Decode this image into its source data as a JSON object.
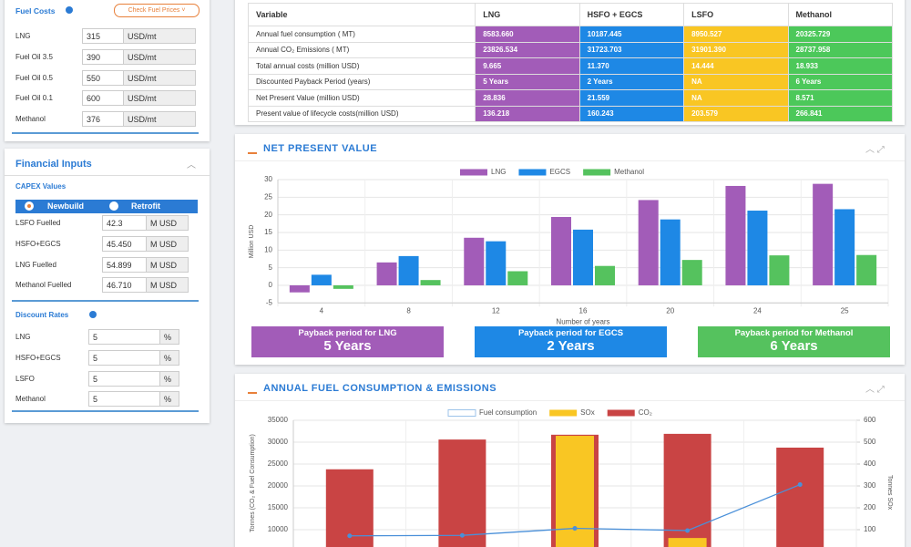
{
  "fuel_costs": {
    "title": "Fuel Costs",
    "button": "Check Fuel Prices",
    "rows": [
      {
        "label": "LNG",
        "value": "315",
        "unit": "USD/mt"
      },
      {
        "label": "Fuel Oil 3.5",
        "value": "390",
        "unit": "USD/mt"
      },
      {
        "label": "Fuel Oil 0.5",
        "value": "550",
        "unit": "USD/mt"
      },
      {
        "label": "Fuel Oil 0.1",
        "value": "600",
        "unit": "USD/mt"
      },
      {
        "label": "Methanol",
        "value": "376",
        "unit": "USD/mt"
      }
    ]
  },
  "financial_inputs": {
    "title": "Financial Inputs",
    "capex": {
      "title": "CAPEX Values",
      "options": [
        "Newbuild",
        "Retrofit"
      ],
      "rows": [
        {
          "label": "LSFO Fuelled",
          "value": "42.3",
          "unit": "M USD"
        },
        {
          "label": "HSFO+EGCS",
          "value": "45.450",
          "unit": "M USD"
        },
        {
          "label": "LNG Fuelled",
          "value": "54.899",
          "unit": "M USD"
        },
        {
          "label": "Methanol Fuelled",
          "value": "46.710",
          "unit": "M USD"
        }
      ]
    },
    "discount": {
      "title": "Discount Rates",
      "rows": [
        {
          "label": "LNG",
          "value": "5",
          "unit": "%"
        },
        {
          "label": "HSFO+EGCS",
          "value": "5",
          "unit": "%"
        },
        {
          "label": "LSFO",
          "value": "5",
          "unit": "%"
        },
        {
          "label": "Methanol",
          "value": "5",
          "unit": "%"
        }
      ]
    }
  },
  "table": {
    "headers": [
      "Variable",
      "LNG",
      "HSFO + EGCS",
      "LSFO",
      "Methanol"
    ],
    "column_colors": [
      "#a25cb8",
      "#1e88e5",
      "#f9c623",
      "#4cc85a"
    ],
    "rows": [
      [
        "Annual fuel consumption ( MT)",
        "8583.660",
        "10187.445",
        "8950.527",
        "20325.729"
      ],
      [
        "Annual CO₂ Emissions ( MT)",
        "23826.534",
        "31723.703",
        "31901.390",
        "28737.958"
      ],
      [
        "Total annual costs (million USD)",
        "9.665",
        "11.370",
        "14.444",
        "18.933"
      ],
      [
        "Discounted Payback Period (years)",
        "5 Years",
        "2 Years",
        "NA",
        "6 Years"
      ],
      [
        "Net Present Value (million USD)",
        "28.836",
        "21.559",
        "NA",
        "8.571"
      ],
      [
        "Present value of lifecycle costs(million USD)",
        "136.218",
        "160.243",
        "203.579",
        "266.841"
      ]
    ]
  },
  "chart_data": [
    {
      "type": "bar",
      "title": "NET PRESENT VALUE",
      "categories": [
        "4",
        "8",
        "12",
        "16",
        "20",
        "24",
        "25"
      ],
      "x_label": "Number of years",
      "y_label": "Million USD",
      "ylim": [
        -5,
        30
      ],
      "yticks": [
        -5,
        0,
        5,
        10,
        15,
        20,
        25,
        30
      ],
      "grid": true,
      "series": [
        {
          "name": "LNG",
          "color": "#a25cb8",
          "values": [
            -2,
            6.5,
            13.5,
            19.4,
            24.2,
            28.2,
            28.8
          ]
        },
        {
          "name": "EGCS",
          "color": "#1e88e5",
          "values": [
            3,
            8.3,
            12.5,
            15.8,
            18.7,
            21.2,
            21.6
          ]
        },
        {
          "name": "Methanol",
          "color": "#55c25e",
          "values": [
            -1,
            1.5,
            4,
            5.5,
            7.2,
            8.5,
            8.6
          ]
        }
      ]
    },
    {
      "type": "bar",
      "title": "ANNUAL FUEL CONSUMPTION & EMISSIONS",
      "categories": [
        null,
        null,
        null,
        null,
        null
      ],
      "y_label": "Tonnes (CO₂ & Fuel Consumption)",
      "y2_label": "Tonnes SOx",
      "ylim": [
        5000,
        35000
      ],
      "yticks": [
        10000,
        15000,
        20000,
        25000,
        30000,
        35000
      ],
      "y2lim": [
        0,
        600
      ],
      "y2ticks": [
        100,
        200,
        300,
        400,
        500,
        600
      ],
      "grid": true,
      "series": [
        {
          "name": "Fuel consumption",
          "type": "line",
          "color": "#4a90d9",
          "values": [
            8600,
            8700,
            10300,
            9800,
            20300
          ]
        },
        {
          "name": "SOx",
          "color": "#f9c623",
          "axis": "y2",
          "values": [
            null,
            null,
            529,
            62,
            null
          ]
        },
        {
          "name": "CO₂",
          "color": "#c94444",
          "values": [
            23800,
            30600,
            31700,
            31900,
            28750
          ]
        }
      ]
    }
  ],
  "payback": [
    {
      "label": "Payback period for LNG",
      "value": "5 Years",
      "color": "#a25cb8"
    },
    {
      "label": "Payback period for EGCS",
      "value": "2 Years",
      "color": "#1e88e5"
    },
    {
      "label": "Payback period for Methanol",
      "value": "6 Years",
      "color": "#55c25e"
    }
  ]
}
